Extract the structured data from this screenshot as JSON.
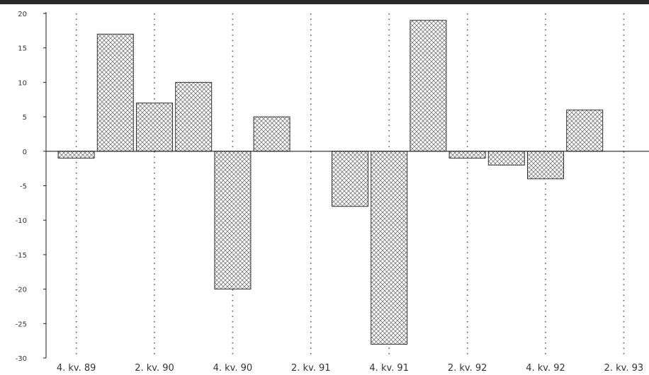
{
  "chart_data": {
    "type": "bar",
    "categories": [
      "",
      "",
      "",
      "",
      "",
      "",
      "",
      "",
      "",
      "",
      "",
      "",
      "",
      ""
    ],
    "values": [
      -1,
      17,
      7,
      10,
      -20,
      5,
      0,
      -8,
      -28,
      19,
      -1,
      -2,
      -4,
      6
    ],
    "xtick_labels": [
      "4. kv. 89",
      "2. kv. 90",
      "4. kv. 90",
      "2. kv. 91",
      "4. kv. 91",
      "2. kv. 92",
      "4. kv. 92",
      "2. kv. 93"
    ],
    "ytick_labels": [
      "20",
      "15",
      "10",
      "5",
      "0",
      "-5",
      "-10",
      "-15",
      "-20",
      "-25",
      "-30"
    ],
    "ylim": [
      -30,
      20
    ],
    "title": "",
    "xlabel": "",
    "ylabel": "",
    "grid": "vertical dotted lines at labeled quarters",
    "bar_fill": "crosshatch",
    "colors": {
      "bar_stroke": "#333333",
      "hatch": "#555555",
      "axis": "#222222",
      "grid": "#444444"
    }
  }
}
